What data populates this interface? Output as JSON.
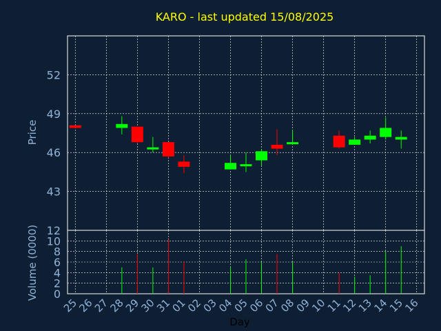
{
  "chart_data": [
    {
      "type": "candlestick",
      "title": "KARO - last updated 15/08/2025",
      "ylabel": "Price",
      "xlabel": "Day",
      "ylim": [
        40,
        55
      ],
      "yticks": [
        43,
        46,
        49,
        52
      ],
      "grid": true,
      "colors": {
        "up": "#00ff00",
        "down": "#ff0000",
        "title": "#ffff00",
        "axis_text": "#8fb3d9",
        "background": "#0f1f33",
        "grid": "#ffffff"
      },
      "categories": [
        "25",
        "26",
        "27",
        "28",
        "29",
        "30",
        "31",
        "01",
        "02",
        "03",
        "04",
        "05",
        "06",
        "07",
        "08",
        "09",
        "10",
        "11",
        "12",
        "13",
        "14",
        "15",
        "16"
      ],
      "candles": [
        {
          "day": "25",
          "open": 48.1,
          "high": 48.1,
          "low": 47.9,
          "close": 47.9
        },
        {
          "day": "28",
          "open": 47.9,
          "high": 48.8,
          "low": 47.4,
          "close": 48.2
        },
        {
          "day": "29",
          "open": 48.0,
          "high": 48.0,
          "low": 46.7,
          "close": 46.8
        },
        {
          "day": "30",
          "open": 46.4,
          "high": 47.2,
          "low": 46.0,
          "close": 46.4
        },
        {
          "day": "31",
          "open": 46.8,
          "high": 46.8,
          "low": 45.6,
          "close": 45.7
        },
        {
          "day": "01",
          "open": 45.3,
          "high": 45.8,
          "low": 44.4,
          "close": 44.9
        },
        {
          "day": "04",
          "open": 44.7,
          "high": 45.8,
          "low": 44.7,
          "close": 45.2
        },
        {
          "day": "05",
          "open": 45.1,
          "high": 46.0,
          "low": 44.5,
          "close": 45.1
        },
        {
          "day": "06",
          "open": 45.4,
          "high": 46.2,
          "low": 45.0,
          "close": 46.1
        },
        {
          "day": "07",
          "open": 46.6,
          "high": 47.8,
          "low": 45.8,
          "close": 46.3
        },
        {
          "day": "08",
          "open": 46.7,
          "high": 47.7,
          "low": 46.6,
          "close": 46.8
        },
        {
          "day": "11",
          "open": 47.3,
          "high": 47.7,
          "low": 46.3,
          "close": 46.4
        },
        {
          "day": "12",
          "open": 46.6,
          "high": 47.2,
          "low": 46.6,
          "close": 47.0
        },
        {
          "day": "13",
          "open": 47.0,
          "high": 47.7,
          "low": 46.7,
          "close": 47.3
        },
        {
          "day": "14",
          "open": 47.2,
          "high": 48.7,
          "low": 47.0,
          "close": 47.9
        },
        {
          "day": "15",
          "open": 47.0,
          "high": 47.7,
          "low": 46.3,
          "close": 47.2
        }
      ]
    },
    {
      "type": "bar",
      "ylabel": "Volume (0000)",
      "xlabel": "Day",
      "ylim": [
        0,
        12
      ],
      "yticks": [
        0,
        2,
        4,
        6,
        8,
        10,
        12
      ],
      "grid": true,
      "volumes": [
        {
          "day": "28",
          "value": 5.0,
          "direction": "up"
        },
        {
          "day": "29",
          "value": 7.5,
          "direction": "down"
        },
        {
          "day": "30",
          "value": 5.0,
          "direction": "up"
        },
        {
          "day": "31",
          "value": 10.3,
          "direction": "down"
        },
        {
          "day": "01",
          "value": 6.0,
          "direction": "down"
        },
        {
          "day": "04",
          "value": 5.0,
          "direction": "up"
        },
        {
          "day": "05",
          "value": 6.5,
          "direction": "up"
        },
        {
          "day": "06",
          "value": 6.0,
          "direction": "up"
        },
        {
          "day": "07",
          "value": 7.5,
          "direction": "down"
        },
        {
          "day": "08",
          "value": 6.0,
          "direction": "up"
        },
        {
          "day": "11",
          "value": 4.0,
          "direction": "down"
        },
        {
          "day": "12",
          "value": 3.2,
          "direction": "up"
        },
        {
          "day": "13",
          "value": 3.5,
          "direction": "up"
        },
        {
          "day": "14",
          "value": 8.0,
          "direction": "up"
        },
        {
          "day": "15",
          "value": 9.0,
          "direction": "up"
        }
      ]
    }
  ]
}
